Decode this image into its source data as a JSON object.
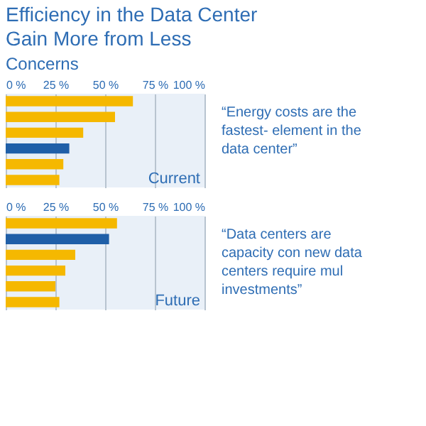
{
  "chart_data": [
    {
      "type": "bar",
      "orientation": "horizontal",
      "title": "Efficiency in the Data Center",
      "subtitle": "Gain More from Less",
      "categories": [
        null,
        null,
        null,
        null,
        null,
        null
      ],
      "values": [
        64,
        55,
        39,
        32,
        29,
        27
      ],
      "colors": [
        "#f5b800",
        "#f5b800",
        "#f5b800",
        "#1f5fa8",
        "#f5b800",
        "#f5b800"
      ],
      "xlim": [
        0,
        100
      ],
      "xticks": [
        {
          "value": 0,
          "label": "0 %"
        },
        {
          "value": 25,
          "label": "25 %"
        },
        {
          "value": 50,
          "label": "50 %"
        },
        {
          "value": 75,
          "label": "75 %"
        },
        {
          "value": 100,
          "label": "100 %"
        }
      ],
      "grid": "x",
      "tick_labels": "x",
      "annotations": [
        "Concerns",
        "Current",
        "“Energy costs are the fastest- element in the data center”"
      ]
    },
    {
      "type": "bar",
      "orientation": "horizontal",
      "categories": [
        null,
        null,
        null,
        null,
        null,
        null
      ],
      "values": [
        56,
        52,
        35,
        30,
        25,
        27
      ],
      "colors": [
        "#f5b800",
        "#1f5fa8",
        "#f5b800",
        "#f5b800",
        "#f5b800",
        "#f5b800"
      ],
      "xlim": [
        0,
        100
      ],
      "xticks": [
        {
          "value": 0,
          "label": "0 %"
        },
        {
          "value": 25,
          "label": "25 %"
        },
        {
          "value": 50,
          "label": "50 %"
        },
        {
          "value": 75,
          "label": "75 %"
        },
        {
          "value": 100,
          "label": "100 %"
        }
      ],
      "grid": "x",
      "tick_labels": "x",
      "annotations": [
        "Future",
        "“Data centers are capacity con new data centers require mul investments”"
      ]
    }
  ]
}
